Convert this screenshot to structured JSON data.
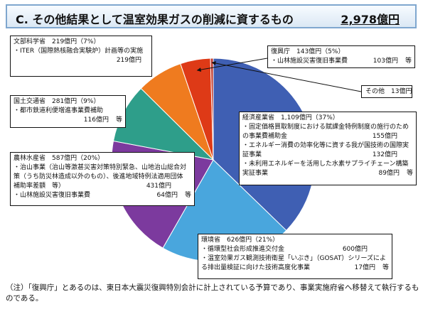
{
  "header": {
    "title": "C. その他結果として温室効果ガスの削減に資するもの",
    "total": "2,978億円"
  },
  "chart_data": {
    "type": "pie",
    "title": "C. その他結果として温室効果ガスの削減に資するもの",
    "total_label": "2,978億円",
    "unit": "億円",
    "slices": [
      {
        "name": "経済産業省",
        "value": 1109,
        "percent": "37%",
        "color": "#3f5fb3"
      },
      {
        "name": "環境省",
        "value": 626,
        "percent": "21%",
        "color": "#49a6dd"
      },
      {
        "name": "農林水産省",
        "value": 587,
        "percent": "20%",
        "color": "#7c3a9e"
      },
      {
        "name": "国土交通省",
        "value": 281,
        "percent": "9%",
        "color": "#2e9e8a"
      },
      {
        "name": "文部科学省",
        "value": 219,
        "percent": "7%",
        "color": "#ef7b1f"
      },
      {
        "name": "復興庁",
        "value": 143,
        "percent": "5%",
        "color": "#de3a17"
      },
      {
        "name": "その他",
        "value": 13,
        "percent": "",
        "color": "#c0392b"
      }
    ]
  },
  "boxes": {
    "meti": {
      "head": "経済産業省　1,109億円（37%）",
      "items": [
        {
          "label": "・固定価格買取制度における賦課金特例制度の施行のための事業費補助金",
          "amount": "155億円"
        },
        {
          "label": "・エネルギー消費の効率化等に資する我が国技術の国際実証事業",
          "amount": "132億円"
        },
        {
          "label": "・未利用エネルギーを活用した水素サプライチェーン構築実証事業",
          "amount": "89億円",
          "etc": "等"
        }
      ]
    },
    "env": {
      "head": "環境省　626億円（21%）",
      "items": [
        {
          "label": "・循環型社会形成推進交付金",
          "amount": "600億円"
        },
        {
          "label": "・温室効果ガス観測技術衛星「いぶき」（GOSAT）シリーズによる排出量検証に向けた技術高度化事業",
          "amount": "17億円",
          "etc": "等"
        }
      ]
    },
    "maff": {
      "head": "農林水産省　587億円（20%）",
      "items": [
        {
          "label": "・治山事業（治山等激甚災害対策特別緊急、山地治山総合対策（うち防災林造成以外のもの）、後進地域特例法適用団体補助率差額　等）",
          "amount": "431億円"
        },
        {
          "label": "・山林施設災害復旧事業費",
          "amount": "64億円",
          "etc": "等"
        }
      ]
    },
    "mlit": {
      "head": "国土交通省　281億円（9%）",
      "items": [
        {
          "label": "・都市鉄道利便増進事業費補助",
          "amount": "116億円",
          "etc": "等"
        }
      ]
    },
    "mext": {
      "head": "文部科学省　219億円（7%）",
      "items": [
        {
          "label": "・ITER（国際熱核融合実験炉）計画等の実施",
          "amount": "219億円"
        }
      ]
    },
    "reconstruction": {
      "head": "復興庁　143億円（5%）",
      "items": [
        {
          "label": "・山林施設災害復旧事業費",
          "amount": "103億円",
          "etc": "等"
        }
      ]
    },
    "other": {
      "head": "その他　13億円"
    }
  },
  "note": "（注）「復興庁」とあるのは、東日本大震災復興特別会計に計上されている予算であり、事業実施府省へ移替えて執行するものである。"
}
